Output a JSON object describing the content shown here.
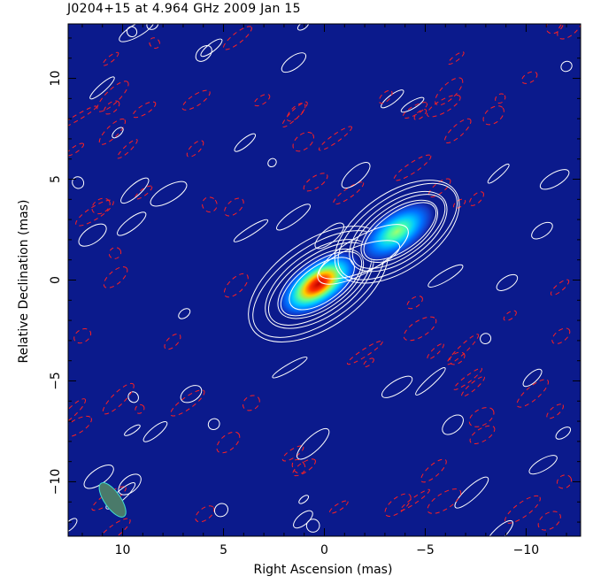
{
  "chart_data": {
    "type": "contour",
    "title": "J0204+15 at 4.964 GHz 2009 Jan 15",
    "xlabel": "Right Ascension  (mas)",
    "ylabel": "Relative Declination  (mas)",
    "xlim": [
      12.7,
      -12.7
    ],
    "ylim": [
      -12.7,
      12.7
    ],
    "xticks": [
      10,
      5,
      0,
      -5,
      -10
    ],
    "xtick_labels": [
      "10",
      "5",
      "0",
      "−5",
      "−10"
    ],
    "yticks": [
      10,
      5,
      0,
      -5,
      -10
    ],
    "ytick_labels": [
      "10",
      "5",
      "0",
      "−5",
      "−10"
    ],
    "components": [
      {
        "x": 0.3,
        "y": -0.2,
        "peak": 1.0,
        "sigma_major": 1.2,
        "sigma_minor": 0.6,
        "pa_deg": -35
      },
      {
        "x": -3.6,
        "y": 2.4,
        "peak": 0.6,
        "sigma_major": 1.1,
        "sigma_minor": 0.55,
        "pa_deg": -35
      }
    ],
    "beam": {
      "x": 10.5,
      "y": -10.9,
      "major": 2.0,
      "minor": 0.8,
      "pa_deg": -35
    },
    "colors": {
      "background": "#0b1a8c",
      "positive_contour": "#ffffff",
      "negative_contour": "#ff2020",
      "beam_fill": "#4a7a6a",
      "beam_edge": "#40e0d0"
    }
  }
}
